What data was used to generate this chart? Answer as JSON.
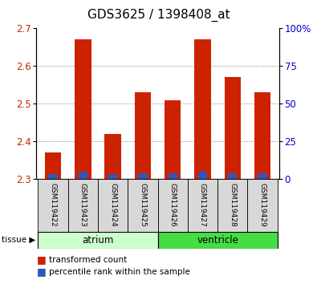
{
  "title": "GDS3625 / 1398408_at",
  "samples": [
    "GSM119422",
    "GSM119423",
    "GSM119424",
    "GSM119425",
    "GSM119426",
    "GSM119427",
    "GSM119428",
    "GSM119429"
  ],
  "transformed_counts": [
    2.37,
    2.67,
    2.42,
    2.53,
    2.51,
    2.67,
    2.57,
    2.53
  ],
  "percentile_ranks": [
    3,
    5,
    3,
    4,
    4,
    5,
    4,
    4
  ],
  "ylim_left": [
    2.3,
    2.7
  ],
  "ylim_right": [
    0,
    100
  ],
  "yticks_left": [
    2.3,
    2.4,
    2.5,
    2.6,
    2.7
  ],
  "yticks_right": [
    0,
    25,
    50,
    75,
    100
  ],
  "ytick_labels_right": [
    "0",
    "25",
    "50",
    "75",
    "100%"
  ],
  "bar_baseline": 2.3,
  "bar_width": 0.55,
  "red_color": "#cc2200",
  "blue_color": "#3355bb",
  "atrium_color": "#ccffcc",
  "ventricle_color": "#44dd44",
  "grid_color": "#666666",
  "bg_color": "#ffffff",
  "red_label_color": "#cc2200",
  "blue_label_color": "#0000cc",
  "title_fontsize": 11,
  "tick_fontsize": 8.5,
  "sample_fontsize": 6.5,
  "legend_items": [
    "transformed count",
    "percentile rank within the sample"
  ],
  "legend_colors": [
    "#cc2200",
    "#3355bb"
  ]
}
